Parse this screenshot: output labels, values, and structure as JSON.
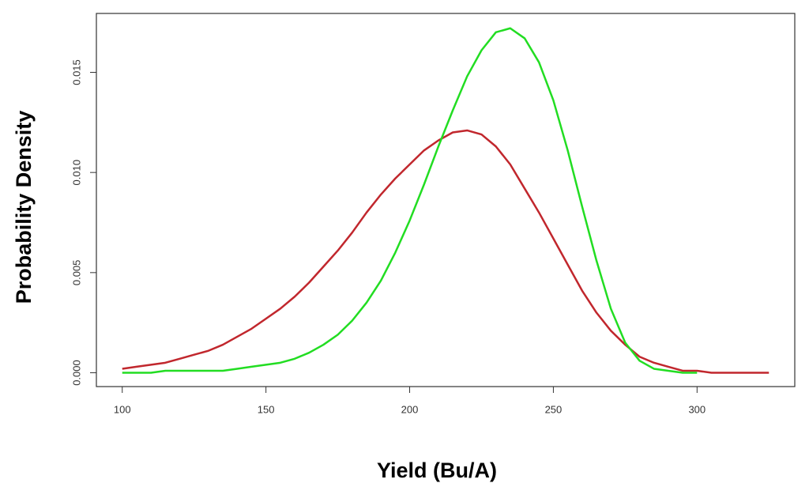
{
  "chart_data": {
    "type": "line",
    "x_label": "Yield (Bu/A)",
    "y_label": "Probability Density",
    "x": [
      100,
      105,
      110,
      115,
      120,
      125,
      130,
      135,
      140,
      145,
      150,
      155,
      160,
      165,
      170,
      175,
      180,
      185,
      190,
      195,
      200,
      205,
      210,
      215,
      220,
      225,
      230,
      235,
      240,
      245,
      250,
      255,
      260,
      265,
      270,
      275,
      280,
      285,
      290,
      295,
      300,
      305,
      310,
      315,
      320,
      325
    ],
    "series": [
      {
        "color": "#c1272d",
        "values": [
          0.0002,
          0.0003,
          0.0004,
          0.0005,
          0.0007,
          0.0009,
          0.0011,
          0.0014,
          0.0018,
          0.0022,
          0.0027,
          0.0032,
          0.0038,
          0.0045,
          0.0053,
          0.0061,
          0.007,
          0.008,
          0.0089,
          0.0097,
          0.0104,
          0.0111,
          0.0116,
          0.012,
          0.0121,
          0.0119,
          0.0113,
          0.0104,
          0.0092,
          0.008,
          0.0067,
          0.0054,
          0.0041,
          0.003,
          0.0021,
          0.0014,
          0.0008,
          0.0005,
          0.0003,
          0.0001,
          0.0001,
          0,
          0,
          0,
          0,
          0
        ]
      },
      {
        "color": "#22dd22",
        "values": [
          0,
          0,
          0,
          0.0001,
          0.0001,
          0.0001,
          0.0001,
          0.0001,
          0.0002,
          0.0003,
          0.0004,
          0.0005,
          0.0007,
          0.001,
          0.0014,
          0.0019,
          0.0026,
          0.0035,
          0.0046,
          0.006,
          0.0076,
          0.0094,
          0.0113,
          0.0131,
          0.0148,
          0.0161,
          0.017,
          0.0172,
          0.0167,
          0.0155,
          0.0136,
          0.0111,
          0.0083,
          0.0056,
          0.0032,
          0.0015,
          0.0006,
          0.0002,
          0.0001,
          0,
          0,
          null,
          null,
          null,
          null,
          null
        ]
      }
    ],
    "xlim": [
      91,
      334
    ],
    "ylim": [
      -0.00069,
      0.01794
    ],
    "xticks": [
      100,
      150,
      200,
      250,
      300
    ],
    "yticks": [
      {
        "value": 0,
        "label": "0.000"
      },
      0.005,
      {
        "value": 0.01,
        "label": "0.010"
      },
      0.015
    ]
  }
}
